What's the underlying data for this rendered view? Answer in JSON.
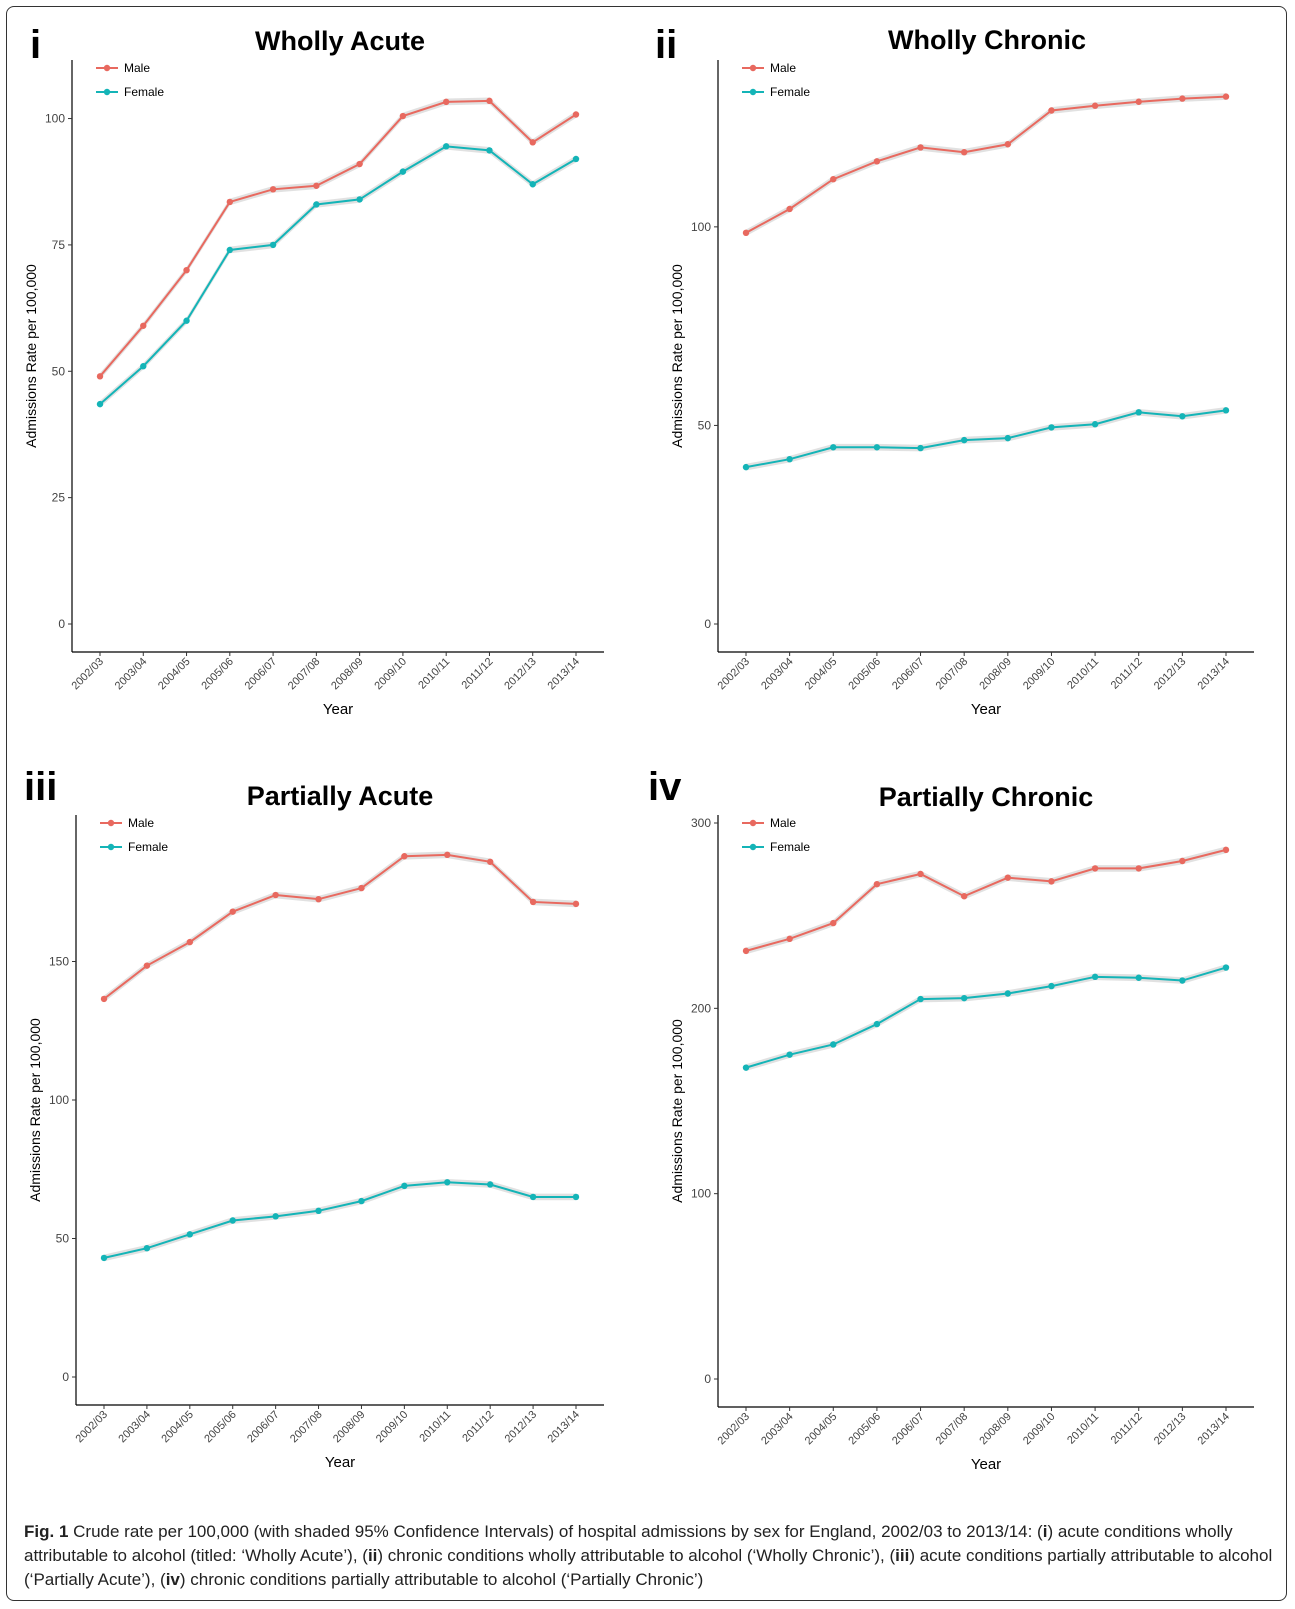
{
  "chart_data": [
    {
      "type": "line",
      "label": "i",
      "title": "Wholly Acute",
      "xlabel": "Year",
      "ylabel": "Admissions Rate per 100,000",
      "categories": [
        "2002/03",
        "2003/04",
        "2004/05",
        "2005/06",
        "2006/07",
        "2007/08",
        "2008/09",
        "2009/10",
        "2010/11",
        "2011/12",
        "2012/13",
        "2013/14"
      ],
      "ylim": [
        0,
        110
      ],
      "yticks": [
        0,
        25,
        50,
        75,
        100
      ],
      "legend_position": "top-left",
      "series": [
        {
          "name": "Male",
          "color": "#e8695f",
          "values": [
            49.0,
            59.0,
            70.0,
            83.5,
            86.0,
            86.7,
            91.0,
            100.5,
            103.3,
            103.5,
            95.3,
            100.8
          ]
        },
        {
          "name": "Female",
          "color": "#14b4b7",
          "values": [
            43.5,
            51.0,
            60.0,
            74.0,
            75.0,
            83.0,
            84.0,
            89.5,
            94.5,
            93.7,
            87.0,
            92.0
          ]
        }
      ]
    },
    {
      "type": "line",
      "label": "ii",
      "title": "Wholly Chronic",
      "xlabel": "Year",
      "ylabel": "Admissions Rate per 100,000",
      "categories": [
        "2002/03",
        "2003/04",
        "2004/05",
        "2005/06",
        "2006/07",
        "2007/08",
        "2008/09",
        "2009/10",
        "2010/11",
        "2011/12",
        "2012/13",
        "2013/14"
      ],
      "ylim": [
        0,
        140
      ],
      "yticks": [
        0,
        50,
        100
      ],
      "legend_position": "top-left",
      "series": [
        {
          "name": "Male",
          "color": "#e8695f",
          "values": [
            98.5,
            104.5,
            112.0,
            116.5,
            120.0,
            118.8,
            120.8,
            129.3,
            130.5,
            131.5,
            132.3,
            132.8
          ]
        },
        {
          "name": "Female",
          "color": "#14b4b7",
          "values": [
            39.5,
            41.5,
            44.5,
            44.5,
            44.3,
            46.3,
            46.8,
            49.5,
            50.3,
            53.3,
            52.3,
            53.8
          ]
        }
      ]
    },
    {
      "type": "line",
      "label": "iii",
      "title": "Partially Acute",
      "xlabel": "Year",
      "ylabel": "Admissions Rate per 100,000",
      "categories": [
        "2002/03",
        "2003/04",
        "2004/05",
        "2005/06",
        "2006/07",
        "2007/08",
        "2008/09",
        "2009/10",
        "2010/11",
        "2011/12",
        "2012/13",
        "2013/14"
      ],
      "ylim": [
        0,
        200
      ],
      "yticks": [
        0,
        50,
        100,
        150
      ],
      "legend_position": "top-left",
      "series": [
        {
          "name": "Male",
          "color": "#e8695f",
          "values": [
            136.5,
            148.5,
            157.0,
            168.0,
            174.0,
            172.5,
            176.5,
            188.0,
            188.5,
            186.0,
            171.5,
            170.8
          ]
        },
        {
          "name": "Female",
          "color": "#14b4b7",
          "values": [
            43.0,
            46.5,
            51.5,
            56.5,
            58.0,
            60.0,
            63.5,
            69.0,
            70.3,
            69.5,
            65.0,
            65.0
          ]
        }
      ]
    },
    {
      "type": "line",
      "label": "iv",
      "title": "Partially Chronic",
      "xlabel": "Year",
      "ylabel": "Admissions Rate per 100,000",
      "categories": [
        "2002/03",
        "2003/04",
        "2004/05",
        "2005/06",
        "2006/07",
        "2007/08",
        "2008/09",
        "2009/10",
        "2010/11",
        "2011/12",
        "2012/13",
        "2013/14"
      ],
      "ylim": [
        0,
        300
      ],
      "yticks": [
        0,
        100,
        200,
        300
      ],
      "legend_position": "top-left",
      "series": [
        {
          "name": "Male",
          "color": "#e8695f",
          "values": [
            231.0,
            237.5,
            246.0,
            267.0,
            272.5,
            260.5,
            270.5,
            268.5,
            275.5,
            275.5,
            279.5,
            285.5
          ]
        },
        {
          "name": "Female",
          "color": "#14b4b7",
          "values": [
            168.0,
            175.0,
            180.5,
            191.5,
            205.0,
            205.5,
            208.0,
            212.0,
            217.0,
            216.5,
            215.0,
            222.0
          ]
        }
      ]
    }
  ],
  "caption": {
    "lead": "Fig. 1",
    "parts": [
      {
        "t": " Crude rate per 100,000 (with shaded 95% Confidence Intervals) of hospital admissions by sex for England, 2002/03 to 2013/14: (",
        "b": false
      },
      {
        "t": "i",
        "b": true
      },
      {
        "t": ") acute conditions wholly attributable to alcohol (titled: ‘Wholly Acute’), (",
        "b": false
      },
      {
        "t": "ii",
        "b": true
      },
      {
        "t": ") chronic conditions wholly attributable to alcohol (‘Wholly Chronic’), (",
        "b": false
      },
      {
        "t": "iii",
        "b": true
      },
      {
        "t": ") acute conditions partially attributable to alcohol (‘Partially Acute’), (",
        "b": false
      },
      {
        "t": "iv",
        "b": true
      },
      {
        "t": ") chronic conditions partially attributable to alcohol (‘Partially Chronic’)",
        "b": false
      }
    ]
  }
}
